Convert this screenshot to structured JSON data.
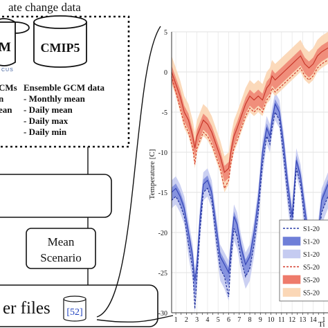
{
  "diagram": {
    "header_text": "ate change data",
    "db_left_label": "M",
    "db_right_label": "CMIP5",
    "logo_text": "CUS",
    "left_list": {
      "heading": "CMs",
      "items": [
        "n",
        "ean"
      ]
    },
    "ensemble": {
      "heading": "Ensemble GCM data",
      "items": [
        "- Monthly mean",
        "- Daily mean",
        "- Daily max",
        "- Daily min"
      ]
    },
    "mean_scenario": [
      "Mean",
      "Scenario"
    ],
    "weather_files_label": "er files",
    "citation": "[52]"
  },
  "chart_data": {
    "type": "line",
    "xlabel": "Ti",
    "ylabel": "Temperature [C]",
    "ylim": [
      -30,
      5
    ],
    "yticks": [
      5,
      0,
      -5,
      -10,
      -15,
      -20,
      -25,
      -30
    ],
    "x_ticks": [
      "1",
      "2",
      "3",
      "4",
      "5",
      "6",
      "7",
      "8",
      "9",
      "10",
      "11",
      "12",
      "13",
      "14",
      "1"
    ],
    "xlim": [
      0.6,
      15.4
    ],
    "grid": true,
    "legend_position": "bottom-right",
    "legend": [
      {
        "label": "S1-20",
        "style": "dashed-line",
        "color": "#2b3fa8"
      },
      {
        "label": "S1-20",
        "style": "band",
        "color": "#6f7fd8"
      },
      {
        "label": "S1-20",
        "style": "band",
        "color": "#c5cbf1"
      },
      {
        "label": "S5-20",
        "style": "dashed-line",
        "color": "#d43a2a"
      },
      {
        "label": "S5-20",
        "style": "band",
        "color": "#ee7b6b"
      },
      {
        "label": "S5-20",
        "style": "band",
        "color": "#fbd7b6"
      }
    ],
    "series_s1": {
      "x": [
        0.6,
        1.0,
        1.4,
        1.8,
        2.2,
        2.6,
        2.8,
        3.0,
        3.3,
        3.6,
        4.0,
        4.4,
        4.8,
        5.2,
        5.6,
        6.0,
        6.2,
        6.5,
        6.8,
        7.2,
        7.6,
        8.0,
        8.4,
        8.8,
        9.2,
        9.6,
        9.9,
        10.1,
        10.4,
        10.8,
        11.2,
        11.6,
        12.0,
        12.4,
        12.8,
        13.2,
        13.6,
        14.0,
        14.4,
        14.8,
        15.4
      ],
      "mean": [
        -15,
        -14.5,
        -15.5,
        -17,
        -20,
        -23,
        -26,
        -24,
        -18,
        -14,
        -13.5,
        -15,
        -19,
        -23,
        -24,
        -25,
        -22,
        -18,
        -19,
        -22,
        -24,
        -23,
        -20,
        -16,
        -10,
        -7,
        -8,
        -6,
        -4,
        -5,
        -9,
        -14,
        -18,
        -11,
        -13,
        -17,
        -21,
        -24,
        -21,
        -16,
        -14
      ],
      "min": [
        -17,
        -16.5,
        -17.5,
        -19,
        -23,
        -26,
        -30,
        -27,
        -21,
        -16,
        -15.5,
        -17,
        -22,
        -26,
        -27,
        -28.5,
        -25,
        -21,
        -22,
        -25,
        -27,
        -26,
        -23,
        -19,
        -13,
        -9,
        -10,
        -8,
        -6,
        -7,
        -12,
        -17,
        -21,
        -13,
        -15,
        -20,
        -24,
        -27,
        -24,
        -19,
        -17
      ],
      "dashed": [
        -16,
        -15.5,
        -16.5,
        -18,
        -21.5,
        -24.5,
        -29.5,
        -25.5,
        -19.5,
        -15,
        -14.5,
        -16,
        -20.5,
        -24.5,
        -25.5,
        -28,
        -23.5,
        -19.5,
        -20.5,
        -23.5,
        -25.5,
        -24.5,
        -21.5,
        -17.5,
        -11.5,
        -8,
        -9,
        -7,
        -5,
        -6,
        -10.5,
        -15.5,
        -19.5,
        -12,
        -14,
        -18.5,
        -22.5,
        -25.5,
        -22.5,
        -17.5,
        -15.5
      ]
    },
    "series_s5": {
      "x": [
        0.6,
        1.0,
        1.4,
        1.8,
        2.2,
        2.6,
        2.8,
        3.0,
        3.3,
        3.6,
        4.0,
        4.4,
        4.8,
        5.2,
        5.6,
        6.0,
        6.2,
        6.5,
        6.8,
        7.2,
        7.6,
        8.0,
        8.4,
        8.8,
        9.2,
        9.6,
        9.9,
        10.1,
        10.4,
        10.8,
        11.2,
        11.6,
        12.0,
        12.4,
        12.8,
        13.2,
        13.6,
        14.0,
        14.4,
        14.8,
        15.4
      ],
      "mean": [
        0,
        -1.5,
        -3,
        -5,
        -6,
        -8,
        -9.5,
        -8,
        -7,
        -6,
        -6.5,
        -7.5,
        -9,
        -10.5,
        -12.5,
        -12,
        -10,
        -8,
        -7,
        -5.5,
        -4,
        -3,
        -3.5,
        -3,
        -3.5,
        -2,
        -1.5,
        -0.5,
        -1,
        -0.5,
        0,
        0.5,
        1,
        1.5,
        2,
        1,
        0.5,
        1,
        2,
        2.5,
        3
      ],
      "upper": [
        2,
        0.5,
        -1,
        -3,
        -4,
        -6,
        -7.5,
        -6,
        -5,
        -4,
        -4.5,
        -5.5,
        -7,
        -8.5,
        -10.5,
        -10,
        -8,
        -6,
        -5,
        -3.5,
        -2,
        -1,
        -1.5,
        -1,
        -1.5,
        0,
        0.5,
        1.5,
        1,
        1.5,
        2,
        2.5,
        3,
        3.5,
        4,
        3,
        2.5,
        3,
        4,
        4.5,
        5
      ],
      "lower": [
        -1.5,
        -3,
        -5,
        -7,
        -8,
        -10,
        -12,
        -10,
        -9,
        -8,
        -8.5,
        -9.5,
        -11,
        -12.5,
        -15,
        -14,
        -12,
        -10,
        -9,
        -7.5,
        -6,
        -5,
        -5.5,
        -5,
        -5.5,
        -4,
        -3.5,
        -2.5,
        -3,
        -2.5,
        -2,
        -1.5,
        -1,
        -0.5,
        0,
        -1,
        -1.5,
        -1,
        0,
        0.5,
        1
      ],
      "dashed": [
        -0.5,
        -2.5,
        -4.5,
        -6.5,
        -7.5,
        -9.5,
        -11.5,
        -9.5,
        -8.5,
        -7.5,
        -8,
        -9,
        -10.5,
        -12,
        -14.5,
        -13.5,
        -11.5,
        -9.5,
        -8.5,
        -7,
        -5.5,
        -4.5,
        -5,
        -4.5,
        -5,
        -3.5,
        -3,
        -2,
        -2.5,
        -2,
        -1.5,
        -1,
        -0.5,
        0,
        0.5,
        -0.5,
        -1,
        -0.5,
        0.5,
        1,
        1.5
      ]
    }
  }
}
